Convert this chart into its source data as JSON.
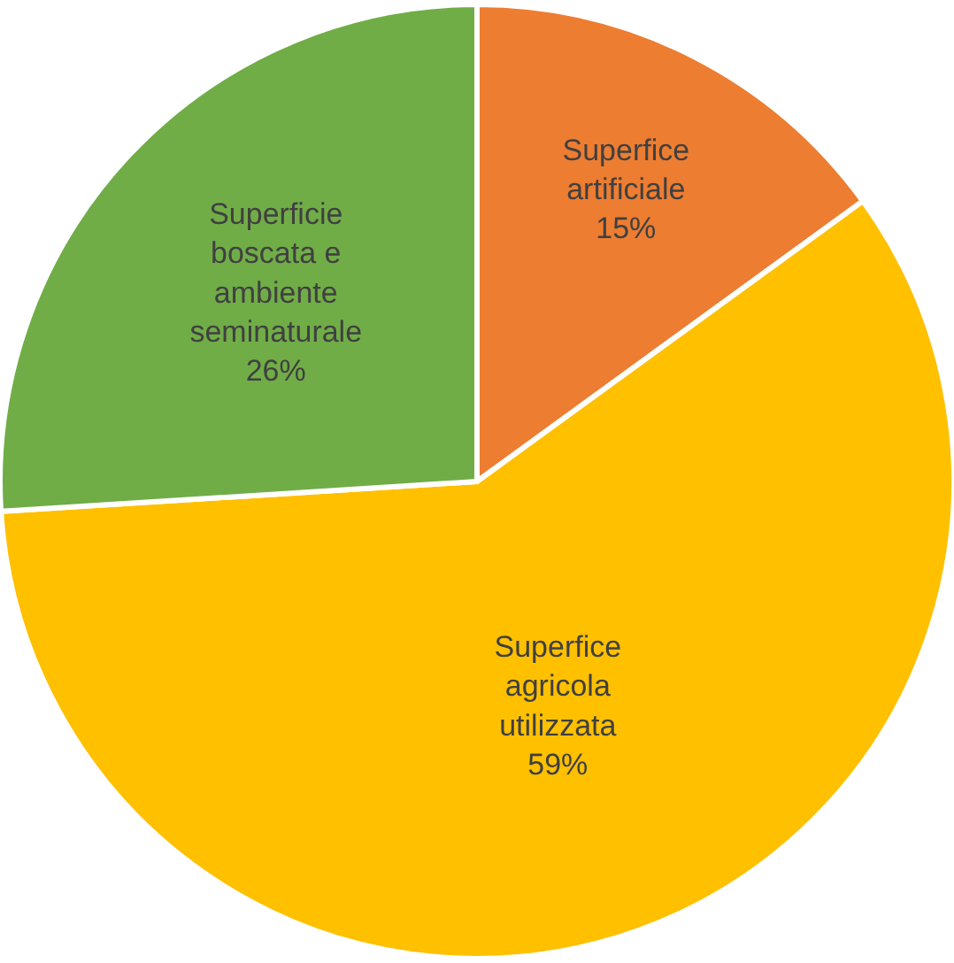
{
  "chart_data": {
    "type": "pie",
    "categories": [
      "Superfice artificiale",
      "Superfice agricola utilizzata",
      "Superficie boscata e ambiente seminaturale"
    ],
    "values": [
      15,
      59,
      26
    ],
    "colors": [
      "#ed7d31",
      "#ffc000",
      "#70ad47"
    ],
    "value_labels": [
      "15%",
      "59%",
      "26%"
    ],
    "legend": false
  }
}
